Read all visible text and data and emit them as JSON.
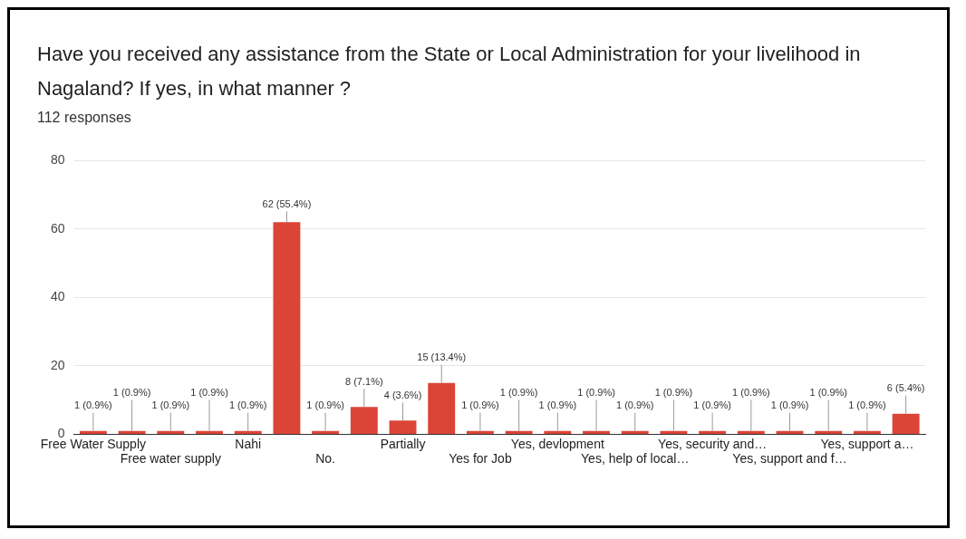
{
  "chart_data": {
    "type": "bar",
    "title": "Have you received any assistance from the State or Local Administration for your livelihood in Nagaland? If yes, in what manner ?",
    "subtitle": "112 responses",
    "categories": [
      "Free Water Supply",
      null,
      "Free water supply",
      null,
      "Nahi",
      null,
      "No.",
      null,
      "Partially",
      null,
      "Yes for Job",
      null,
      "Yes, devlopment",
      null,
      "Yes, help of local…",
      null,
      "Yes, security and…",
      null,
      "Yes, support and f…",
      null,
      "Yes, support a…",
      null
    ],
    "values": [
      1,
      1,
      1,
      1,
      1,
      62,
      1,
      8,
      4,
      15,
      1,
      1,
      1,
      1,
      1,
      1,
      1,
      1,
      1,
      1,
      1,
      6
    ],
    "value_labels": [
      "1 (0.9%)",
      "1 (0.9%)",
      "1 (0.9%)",
      "1 (0.9%)",
      "1 (0.9%)",
      "62 (55.4%)",
      "1 (0.9%)",
      "8 (7.1%)",
      "4 (3.6%)",
      "15 (13.4%)",
      "1 (0.9%)",
      "1 (0.9%)",
      "1 (0.9%)",
      "1 (0.9%)",
      "1 (0.9%)",
      "1 (0.9%)",
      "1 (0.9%)",
      "1 (0.9%)",
      "1 (0.9%)",
      "1 (0.9%)",
      "1 (0.9%)",
      "6 (5.4%)"
    ],
    "color": "#db4437",
    "ylim": [
      0,
      80
    ],
    "yticks": [
      0,
      20,
      40,
      60,
      80
    ],
    "grid": "y"
  }
}
